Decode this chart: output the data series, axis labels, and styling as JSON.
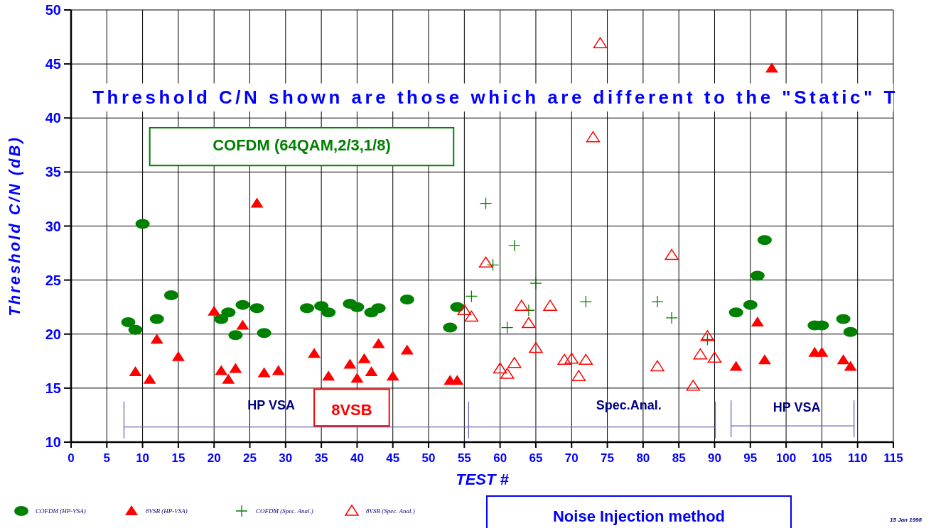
{
  "chart_data": {
    "type": "scatter",
    "xlabel": "TEST #",
    "ylabel": "Threshold C/N (dB)",
    "xlim": [
      0,
      115
    ],
    "xticks": [
      0,
      5,
      10,
      15,
      20,
      25,
      30,
      35,
      40,
      45,
      50,
      55,
      60,
      65,
      70,
      75,
      80,
      85,
      90,
      95,
      100,
      105,
      110,
      115
    ],
    "ylim": [
      10,
      50
    ],
    "yticks": [
      10,
      15,
      20,
      25,
      30,
      35,
      40,
      45,
      50
    ],
    "grid": true,
    "legend": "bottom left",
    "series": [
      {
        "name": "COFDM (HP-VSA)",
        "color": "#008000",
        "marker": "circle",
        "x": [
          8,
          9,
          10,
          12,
          14,
          21,
          22,
          23,
          24,
          26,
          27,
          33,
          35,
          36,
          39,
          40,
          42,
          43,
          47,
          53,
          54,
          93,
          95,
          96,
          97,
          104,
          105,
          108,
          109
        ],
        "values": [
          21.1,
          20.4,
          30.2,
          21.4,
          23.6,
          21.4,
          22.0,
          19.9,
          22.7,
          22.4,
          20.1,
          22.4,
          22.6,
          22.0,
          22.8,
          22.5,
          22.0,
          22.4,
          23.2,
          20.6,
          22.5,
          22.0,
          22.7,
          25.4,
          28.7,
          20.8,
          20.8,
          21.4,
          20.2
        ]
      },
      {
        "name": "8VSB (HP-VSA)",
        "color": "#ff0000",
        "marker": "triangle",
        "x": [
          9,
          11,
          12,
          15,
          20,
          21,
          22,
          23,
          24,
          26,
          27,
          29,
          34,
          36,
          39,
          40,
          41,
          42,
          43,
          45,
          47,
          53,
          54,
          93,
          96,
          97,
          98,
          104,
          105,
          108,
          109
        ],
        "values": [
          16.5,
          15.8,
          19.5,
          17.9,
          22.1,
          16.6,
          15.8,
          16.8,
          20.8,
          32.1,
          16.4,
          16.6,
          18.2,
          16.1,
          17.2,
          15.9,
          17.7,
          16.5,
          19.1,
          16.1,
          18.5,
          15.7,
          15.7,
          17.0,
          21.1,
          17.6,
          44.6,
          18.3,
          18.3,
          17.6,
          17.0
        ]
      },
      {
        "name": "COFDM (Spec. Anal.)",
        "color": "#008000",
        "marker": "cross",
        "x": [
          58,
          62,
          59,
          65,
          56,
          64,
          61,
          72,
          82,
          84,
          89
        ],
        "values": [
          32.1,
          28.2,
          26.4,
          24.7,
          23.5,
          22.2,
          20.6,
          23.0,
          23.0,
          21.5,
          19.5
        ]
      },
      {
        "name": "8VSB (Spec. Anal.)",
        "color": "#ff0000",
        "marker": "triangle",
        "x": [
          74,
          73,
          58,
          84,
          55,
          56,
          63,
          67,
          64,
          65,
          60,
          61,
          62,
          69,
          70,
          72,
          71,
          82,
          87,
          88,
          89,
          90
        ],
        "values": [
          46.9,
          38.2,
          26.6,
          27.3,
          22.2,
          21.6,
          22.6,
          22.6,
          21.0,
          18.7,
          16.8,
          16.3,
          17.3,
          17.6,
          17.7,
          17.6,
          16.1,
          17.0,
          15.2,
          18.1,
          19.8,
          17.8
        ]
      },
      {
        "type": "line",
        "color": "#6666bb",
        "marker": "none",
        "x": [
          7.4,
          55.6,
          90.1
        ],
        "values": [
          11.4,
          11.4,
          11.4
        ]
      },
      {
        "type": "line",
        "color": "#6666bb",
        "marker": "none",
        "x": [
          92.3,
          109.5
        ],
        "values": [
          11.5,
          11.5
        ]
      }
    ],
    "annotations": [
      "Threshold C/N shown are those which are different to the \"Static\" T",
      "COFDM (64QAM,2/3,1/8)",
      "8VSB",
      "HP VSA",
      "Spec.Anal.",
      "HP VSA",
      "Noise Injection method",
      "15 Jan 1998"
    ]
  }
}
